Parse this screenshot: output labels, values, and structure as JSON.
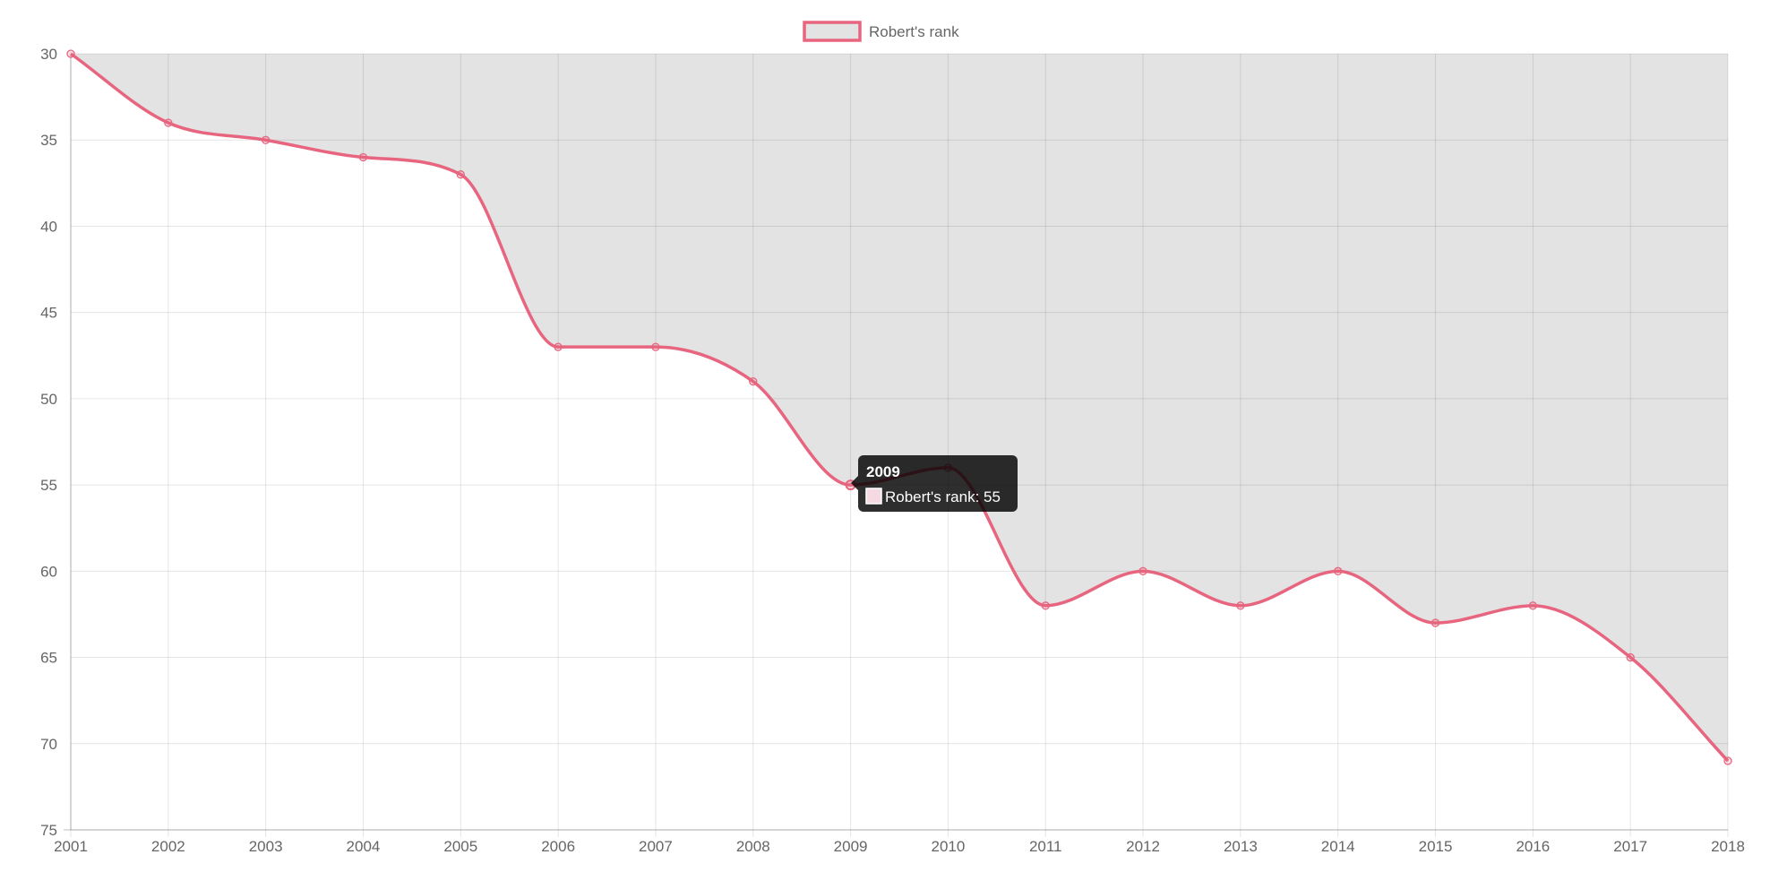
{
  "chart_data": {
    "type": "line",
    "title": "",
    "xlabel": "",
    "ylabel": "",
    "categories": [
      "2001",
      "2002",
      "2003",
      "2004",
      "2005",
      "2006",
      "2007",
      "2008",
      "2009",
      "2010",
      "2011",
      "2012",
      "2013",
      "2014",
      "2015",
      "2016",
      "2017",
      "2018"
    ],
    "series": [
      {
        "name": "Robert's rank",
        "values": [
          30,
          34,
          35,
          36,
          37,
          47,
          47,
          49,
          55,
          54,
          62,
          60,
          62,
          60,
          63,
          62,
          65,
          71
        ],
        "line_color": "#e8657f",
        "fill_color": "#e3e3e3",
        "fill": "above-line"
      }
    ],
    "y_axis": {
      "min": 30,
      "max": 75,
      "step": 5,
      "reversed": true,
      "ticks": [
        "30",
        "35",
        "40",
        "45",
        "50",
        "55",
        "60",
        "65",
        "70",
        "75"
      ]
    },
    "grid": true,
    "legend": {
      "position": "top",
      "label": "Robert's rank"
    },
    "tooltip": {
      "category": "2009",
      "title": "2009",
      "label": "Robert's rank: 55",
      "value": 55
    }
  }
}
